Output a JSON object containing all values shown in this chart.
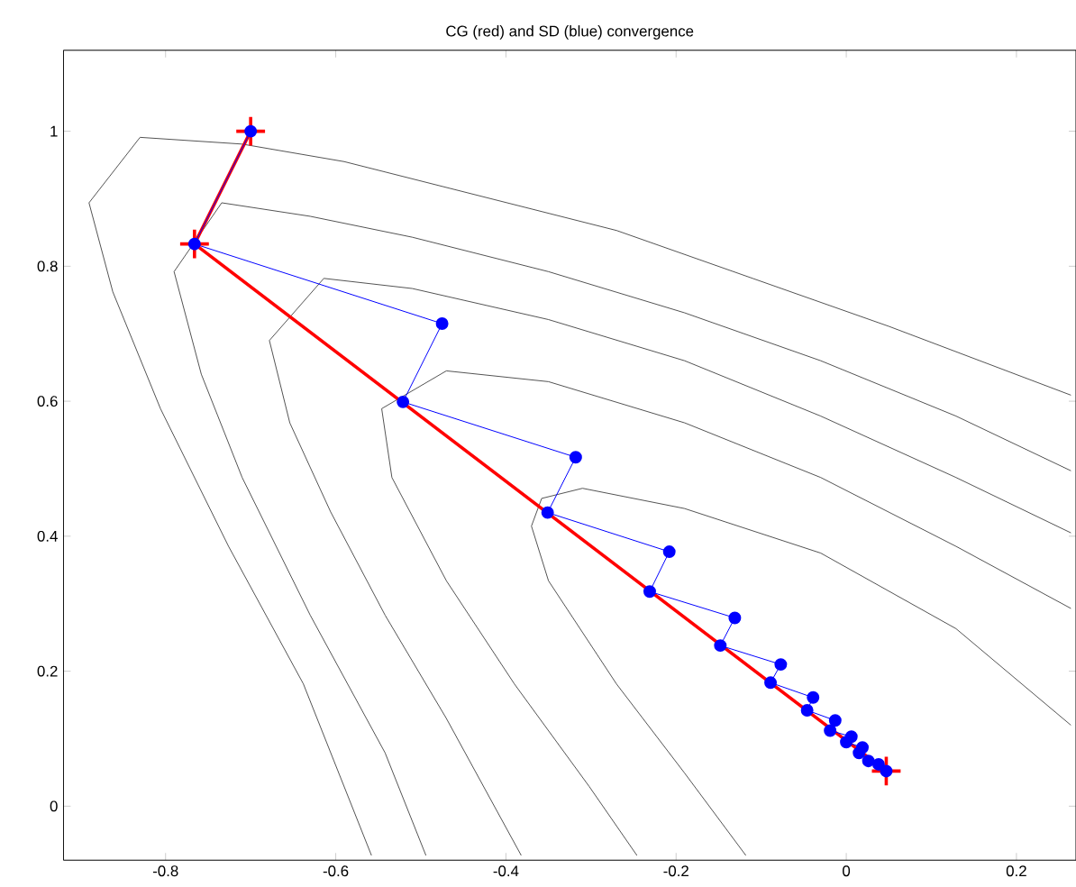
{
  "chart_data": {
    "type": "line",
    "title": "CG (red) and SD (blue) convergence",
    "xlim": [
      -0.92,
      0.27
    ],
    "ylim": [
      -0.08,
      1.12
    ],
    "xticks": [
      -0.8,
      -0.6,
      -0.4,
      -0.2,
      0,
      0.2
    ],
    "yticks": [
      0,
      0.2,
      0.4,
      0.6,
      0.8,
      1
    ],
    "series": [
      {
        "color": "#404040",
        "marker": "none",
        "x": [
          -0.118,
          -0.19,
          -0.27,
          -0.35,
          -0.37,
          -0.358,
          -0.31,
          -0.19,
          -0.03,
          0.129,
          0.264
        ],
        "values": [
          -0.073,
          0.049,
          0.181,
          0.334,
          0.415,
          0.456,
          0.471,
          0.441,
          0.375,
          0.263,
          0.12
        ]
      },
      {
        "color": "#404040",
        "marker": "none",
        "x": [
          -0.246,
          -0.302,
          -0.39,
          -0.47,
          -0.534,
          -0.546,
          -0.47,
          -0.35,
          -0.19,
          -0.03,
          0.129,
          0.264
        ],
        "values": [
          -0.073,
          0.029,
          0.181,
          0.334,
          0.487,
          0.589,
          0.645,
          0.629,
          0.568,
          0.487,
          0.385,
          0.293
        ]
      },
      {
        "color": "#404040",
        "marker": "none",
        "x": [
          -0.382,
          -0.47,
          -0.542,
          -0.606,
          -0.654,
          -0.678,
          -0.614,
          -0.51,
          -0.35,
          -0.19,
          -0.03,
          0.129,
          0.264
        ],
        "values": [
          -0.073,
          0.13,
          0.283,
          0.436,
          0.568,
          0.69,
          0.782,
          0.767,
          0.721,
          0.66,
          0.578,
          0.487,
          0.405
        ]
      },
      {
        "color": "#404040",
        "marker": "none",
        "x": [
          -0.494,
          -0.542,
          -0.63,
          -0.71,
          -0.758,
          -0.79,
          -0.734,
          -0.63,
          -0.51,
          -0.35,
          -0.19,
          -0.03,
          0.129,
          0.264
        ],
        "values": [
          -0.073,
          0.079,
          0.283,
          0.487,
          0.64,
          0.792,
          0.894,
          0.874,
          0.843,
          0.792,
          0.731,
          0.66,
          0.578,
          0.497
        ]
      },
      {
        "color": "#404040",
        "marker": "none",
        "x": [
          -0.558,
          -0.638,
          -0.726,
          -0.806,
          -0.862,
          -0.89,
          -0.83,
          -0.71,
          -0.59,
          -0.43,
          -0.27,
          -0.11,
          0.05,
          0.264
        ],
        "values": [
          -0.073,
          0.181,
          0.385,
          0.589,
          0.762,
          0.894,
          0.991,
          0.981,
          0.955,
          0.904,
          0.853,
          0.782,
          0.711,
          0.609
        ]
      },
      {
        "color": "#ff0000",
        "marker": "cross",
        "x": [
          -0.7,
          -0.766,
          0.047
        ],
        "values": [
          1.0,
          0.833,
          0.052
        ]
      },
      {
        "color": "#0000ff",
        "marker": "circle",
        "x": [
          -0.7,
          -0.766,
          -0.475,
          -0.521,
          -0.318,
          -0.351,
          -0.208,
          -0.231,
          -0.131,
          -0.148,
          -0.077,
          -0.089,
          -0.039,
          -0.046,
          -0.013,
          -0.019,
          0.006,
          0,
          0.019,
          0.015,
          0.026,
          0.038,
          0.047
        ],
        "values": [
          1.0,
          0.833,
          0.715,
          0.599,
          0.517,
          0.435,
          0.377,
          0.318,
          0.279,
          0.238,
          0.21,
          0.183,
          0.161,
          0.142,
          0.127,
          0.112,
          0.103,
          0.095,
          0.087,
          0.079,
          0.067,
          0.062,
          0.052
        ]
      }
    ]
  }
}
